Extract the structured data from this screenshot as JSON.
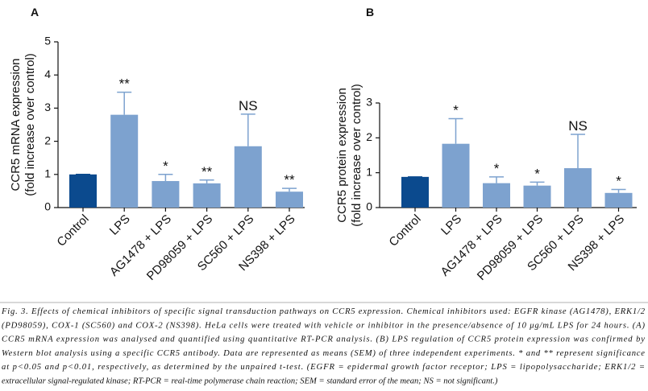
{
  "chart_data": [
    {
      "type": "bar",
      "panel": "A",
      "ylabel": [
        "CCR5 mRNA expression",
        "(fold increase over control)"
      ],
      "categories": [
        "Control",
        "LPS",
        "AG1478 + LPS",
        "PD98059 + LPS",
        "SC560 + LPS",
        "NS398 + LPS"
      ],
      "values": [
        1.0,
        2.8,
        0.8,
        0.73,
        1.85,
        0.48
      ],
      "errors": [
        0,
        0.68,
        0.2,
        0.1,
        0.97,
        0.1
      ],
      "annotations": [
        null,
        "**",
        "*",
        "**",
        "NS",
        "**"
      ],
      "colors": [
        "#0b4a8e",
        "#7da2cf",
        "#7da2cf",
        "#7da2cf",
        "#7da2cf",
        "#7da2cf"
      ],
      "ylim": [
        0,
        5
      ],
      "yticks": [
        0,
        1,
        2,
        3,
        4,
        5
      ]
    },
    {
      "type": "bar",
      "panel": "B",
      "ylabel": [
        "CCR5 protein expression",
        "(fold increase over control)"
      ],
      "categories": [
        "Control",
        "LPS",
        "AG1478 + LPS",
        "PD98059 + LPS",
        "SC560 + LPS",
        "NS398 + LPS"
      ],
      "values": [
        0.88,
        1.83,
        0.7,
        0.63,
        1.13,
        0.42
      ],
      "errors": [
        0,
        0.72,
        0.18,
        0.1,
        0.97,
        0.1
      ],
      "annotations": [
        null,
        "*",
        "*",
        "*",
        "NS",
        "*"
      ],
      "colors": [
        "#0b4a8e",
        "#7da2cf",
        "#7da2cf",
        "#7da2cf",
        "#7da2cf",
        "#7da2cf"
      ],
      "ylim": [
        0,
        3
      ],
      "yticks": [
        0,
        1,
        2,
        3
      ]
    }
  ],
  "caption": [
    "Fig. 3. Effects of chemical inhibitors of specific signal transduction pathways on CCR5 expression. Chemical inhibitors used: EGFR kinase (AG1478), ERK1/2",
    "(PD98059), COX-1 (SC560) and COX-2 (NS398). HeLa cells were treated with vehicle or inhibitor in the presence/absence of 10 μg/mL LPS for 24 hours. (A)",
    "CCR5 mRNA expression was analysed and quantified using quantitative RT-PCR analysis. (B) LPS regulation of CCR5 protein expression was confirmed by",
    "Western blot analysis using a specific CCR5 antibody. Data are represented as means (SEM) of three independent experiments. * and ** represent significance",
    "at p<0.05 and p<0.01, respectively, as determined by the unpaired t-test. (EGFR = epidermal growth factor receptor; LPS = lipopolysaccharide; ERK1/2 =",
    "extracellular signal-regulated kinase; RT-PCR = real-time polymerase chain reaction; SEM = standard error of the mean; NS = not significant.)"
  ]
}
